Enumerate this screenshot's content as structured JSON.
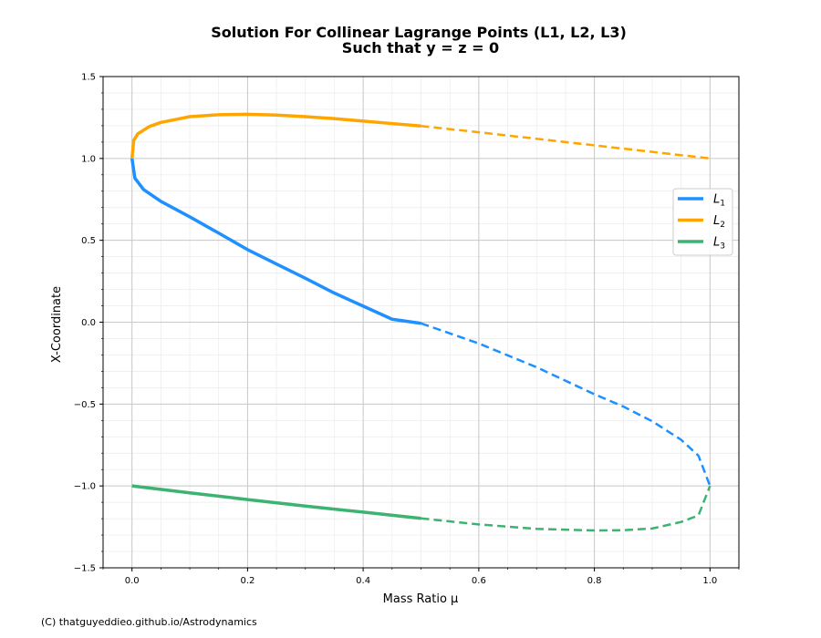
{
  "chart_data": {
    "type": "line",
    "title_lines": [
      "Solution For Collinear Lagrange Points (L1, L2, L3)",
      "Such that y = z = 0"
    ],
    "xlabel": "Mass Ratio μ",
    "ylabel": "X-Coordinate",
    "xlim": [
      -0.05,
      1.05
    ],
    "ylim": [
      -1.5,
      1.5
    ],
    "x_ticks": [
      0.0,
      0.2,
      0.4,
      0.6,
      0.8,
      1.0
    ],
    "x_tick_labels": [
      "0.0",
      "0.2",
      "0.4",
      "0.6",
      "0.8",
      "1.0"
    ],
    "y_ticks": [
      -1.5,
      -1.0,
      -0.5,
      0.0,
      0.5,
      1.0,
      1.5
    ],
    "y_tick_labels": [
      "−1.5",
      "−1.0",
      "−0.5",
      "0.0",
      "0.5",
      "1.0",
      "1.5"
    ],
    "grid": true,
    "legend_position": "center-right",
    "series": [
      {
        "name": "L1",
        "name_main": "L",
        "name_sub": "1",
        "color": "#1e90ff",
        "solid": [
          [
            0.0,
            1.0
          ],
          [
            0.005,
            0.88
          ],
          [
            0.02,
            0.81
          ],
          [
            0.05,
            0.738
          ],
          [
            0.1,
            0.643
          ],
          [
            0.15,
            0.544
          ],
          [
            0.2,
            0.443
          ],
          [
            0.25,
            0.355
          ],
          [
            0.3,
            0.268
          ],
          [
            0.35,
            0.178
          ],
          [
            0.4,
            0.098
          ],
          [
            0.45,
            0.018
          ],
          [
            0.5,
            -0.007
          ]
        ],
        "dashed": [
          [
            0.5,
            -0.007
          ],
          [
            0.6,
            -0.13
          ],
          [
            0.7,
            -0.275
          ],
          [
            0.8,
            -0.44
          ],
          [
            0.85,
            -0.515
          ],
          [
            0.9,
            -0.605
          ],
          [
            0.95,
            -0.718
          ],
          [
            0.98,
            -0.815
          ],
          [
            1.0,
            -1.0
          ]
        ]
      },
      {
        "name": "L2",
        "name_main": "L",
        "name_sub": "2",
        "color": "#ffa500",
        "solid": [
          [
            0.0,
            1.0
          ],
          [
            0.003,
            1.11
          ],
          [
            0.01,
            1.15
          ],
          [
            0.03,
            1.195
          ],
          [
            0.05,
            1.22
          ],
          [
            0.1,
            1.255
          ],
          [
            0.15,
            1.267
          ],
          [
            0.2,
            1.27
          ],
          [
            0.25,
            1.265
          ],
          [
            0.3,
            1.255
          ],
          [
            0.35,
            1.243
          ],
          [
            0.4,
            1.228
          ],
          [
            0.45,
            1.213
          ],
          [
            0.5,
            1.198
          ]
        ],
        "dashed": [
          [
            0.5,
            1.198
          ],
          [
            0.6,
            1.16
          ],
          [
            0.7,
            1.12
          ],
          [
            0.8,
            1.08
          ],
          [
            0.9,
            1.04
          ],
          [
            1.0,
            1.0
          ]
        ]
      },
      {
        "name": "L3",
        "name_main": "L",
        "name_sub": "3",
        "color": "#3cb371",
        "solid": [
          [
            0.0,
            -1.0
          ],
          [
            0.1,
            -1.042
          ],
          [
            0.2,
            -1.083
          ],
          [
            0.3,
            -1.123
          ],
          [
            0.4,
            -1.16
          ],
          [
            0.5,
            -1.198
          ]
        ],
        "dashed": [
          [
            0.5,
            -1.198
          ],
          [
            0.6,
            -1.235
          ],
          [
            0.7,
            -1.262
          ],
          [
            0.8,
            -1.272
          ],
          [
            0.85,
            -1.27
          ],
          [
            0.9,
            -1.26
          ],
          [
            0.95,
            -1.22
          ],
          [
            0.98,
            -1.18
          ],
          [
            1.0,
            -1.0
          ]
        ]
      }
    ]
  },
  "credit": "(C) thatguyeddieo.github.io/Astrodynamics"
}
